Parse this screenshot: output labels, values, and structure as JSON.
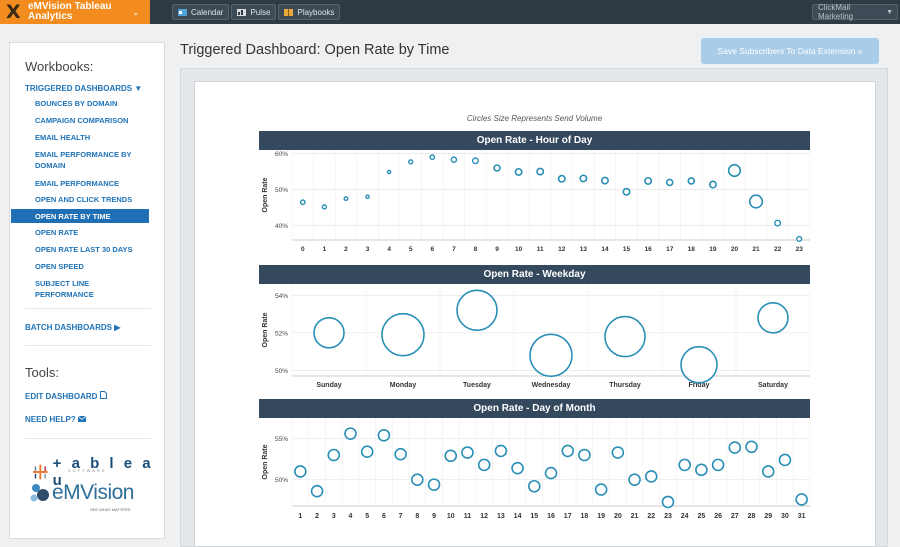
{
  "app": {
    "brand_line1": "eMVision Tableau",
    "brand_line2": "Analytics",
    "logo_letter": "X"
  },
  "topnav": {
    "calendar": "Calendar",
    "pulse": "Pulse",
    "playbooks": "Playbooks",
    "client": "ClickMail Marketing"
  },
  "sidebar": {
    "workbooks_title": "Workbooks:",
    "triggered_label": "TRIGGERED DASHBOARDS",
    "triggered_items": [
      "BOUNCES BY DOMAIN",
      "CAMPAIGN COMPARISON",
      "EMAIL HEALTH",
      "EMAIL PERFORMANCE BY DOMAIN",
      "EMAIL PERFORMANCE",
      "OPEN AND CLICK TRENDS",
      "OPEN RATE BY TIME",
      "OPEN RATE",
      "OPEN RATE LAST 30 DAYS",
      "OPEN SPEED",
      "SUBJECT LINE PERFORMANCE"
    ],
    "active_item": "OPEN RATE BY TIME",
    "batch_label": "BATCH DASHBOARDS",
    "tools_title": "Tools:",
    "edit_dashboard": "EDIT DASHBOARD",
    "need_help": "NEED HELP?",
    "tableau_logo": "+ a b l e a u",
    "tableau_sub": "SOFTWARE",
    "emvision_logo": "eMVision",
    "emvision_tag": "SEE WHAT MATTERS"
  },
  "main": {
    "title": "Triggered Dashboard: Open Rate by Time",
    "save_button": "Save Subscribers To Data Extension »",
    "size_note": "Circles Size Represents Send Volume"
  },
  "colors": {
    "accent": "#2a8fb6",
    "header": "#34495e",
    "brand": "#f28c1e",
    "link": "#1f73b7"
  },
  "chart_data": [
    {
      "type": "scatter",
      "title": "Open Rate - Hour of Day",
      "ylabel": "Open Rate",
      "ylim": [
        36,
        61
      ],
      "yticks": [
        60,
        50,
        40
      ],
      "ytick_labels": [
        "60%",
        "50%",
        "40%"
      ],
      "categories": [
        "0",
        "1",
        "2",
        "3",
        "4",
        "5",
        "6",
        "7",
        "8",
        "9",
        "10",
        "11",
        "12",
        "13",
        "14",
        "15",
        "16",
        "17",
        "18",
        "19",
        "20",
        "21",
        "22",
        "23"
      ],
      "values": [
        46.5,
        45.2,
        47.5,
        48.0,
        54.9,
        57.7,
        59.0,
        58.3,
        58.0,
        56.0,
        54.9,
        55.0,
        53.0,
        53.1,
        52.5,
        49.4,
        52.4,
        52.0,
        52.4,
        51.4,
        55.3,
        46.7,
        40.7,
        36.3
      ],
      "sizes": [
        2.2,
        2.0,
        1.8,
        1.6,
        1.6,
        2.0,
        2.2,
        2.6,
        2.8,
        3.0,
        3.2,
        3.2,
        3.2,
        3.2,
        3.2,
        3.2,
        3.2,
        3.0,
        3.0,
        3.2,
        5.8,
        6.3,
        2.8,
        2.4
      ]
    },
    {
      "type": "scatter",
      "title": "Open Rate - Weekday",
      "ylabel": "Open Rate",
      "ylim": [
        49.7,
        54.6
      ],
      "yticks": [
        54,
        52,
        50
      ],
      "ytick_labels": [
        "54%",
        "52%",
        "50%"
      ],
      "categories": [
        "Sunday",
        "Monday",
        "Tuesday",
        "Wednesday",
        "Thursday",
        "Friday",
        "Saturday"
      ],
      "values": [
        52.0,
        51.9,
        53.2,
        50.8,
        51.8,
        50.3,
        52.8
      ],
      "sizes": [
        15,
        21,
        20,
        21,
        20,
        18,
        15
      ]
    },
    {
      "type": "scatter",
      "title": "Open Rate - Day of Month",
      "ylabel": "Open Rate",
      "ylim": [
        46.8,
        57.5
      ],
      "yticks": [
        55,
        50
      ],
      "ytick_labels": [
        "55%",
        "50%"
      ],
      "categories": [
        "1",
        "2",
        "3",
        "4",
        "5",
        "6",
        "7",
        "8",
        "9",
        "10",
        "11",
        "12",
        "13",
        "14",
        "15",
        "16",
        "17",
        "18",
        "19",
        "20",
        "21",
        "22",
        "23",
        "24",
        "25",
        "26",
        "27",
        "28",
        "29",
        "30",
        "31"
      ],
      "values": [
        51.0,
        48.6,
        53.0,
        55.6,
        53.4,
        55.4,
        53.1,
        50.0,
        49.4,
        52.9,
        53.3,
        51.8,
        53.5,
        51.4,
        49.2,
        50.8,
        53.5,
        53.0,
        48.8,
        53.3,
        50.0,
        50.4,
        47.3,
        51.8,
        51.2,
        51.8,
        53.9,
        54.0,
        51.0,
        52.4,
        47.6
      ]
    }
  ]
}
